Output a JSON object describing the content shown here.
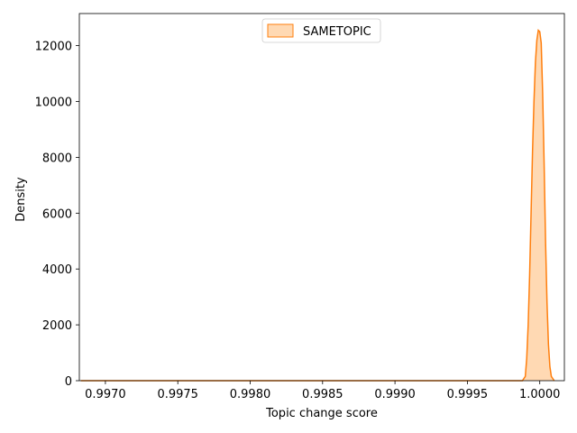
{
  "chart_data": {
    "type": "area",
    "title": "",
    "xlabel": "Topic change score",
    "ylabel": "Density",
    "xlim": [
      0.99682,
      1.00017
    ],
    "ylim": [
      0,
      13150
    ],
    "xticks": [
      0.997,
      0.9975,
      0.998,
      0.9985,
      0.999,
      0.9995,
      1.0
    ],
    "xtick_labels": [
      "0.9970",
      "0.9975",
      "0.9980",
      "0.9985",
      "0.9990",
      "0.9995",
      "1.0000"
    ],
    "yticks": [
      0,
      2000,
      4000,
      6000,
      8000,
      10000,
      12000
    ],
    "ytick_labels": [
      "0",
      "2000",
      "4000",
      "6000",
      "8000",
      "10000",
      "12000"
    ],
    "grid": false,
    "legend_position": "top-center",
    "series": [
      {
        "name": "SAMETOPIC",
        "line_color": "#ff7f0e",
        "fill_color": "#ffd9b3",
        "points": [
          [
            0.99683,
            0
          ],
          [
            0.998,
            0
          ],
          [
            0.999,
            0
          ],
          [
            0.9997,
            0
          ],
          [
            0.99988,
            0
          ],
          [
            0.9999,
            150
          ],
          [
            0.99991,
            800
          ],
          [
            0.99992,
            2000
          ],
          [
            0.99993,
            3800
          ],
          [
            0.99994,
            6000
          ],
          [
            0.99995,
            8200
          ],
          [
            0.99996,
            10000
          ],
          [
            0.99997,
            11400
          ],
          [
            0.99998,
            12200
          ],
          [
            0.99999,
            12550
          ],
          [
            1.0,
            12500
          ],
          [
            1.00001,
            12100
          ],
          [
            1.00002,
            10300
          ],
          [
            1.00003,
            7800
          ],
          [
            1.00004,
            5000
          ],
          [
            1.00005,
            2800
          ],
          [
            1.00006,
            1300
          ],
          [
            1.00007,
            500
          ],
          [
            1.00008,
            150
          ],
          [
            1.0001,
            0
          ]
        ]
      }
    ]
  }
}
